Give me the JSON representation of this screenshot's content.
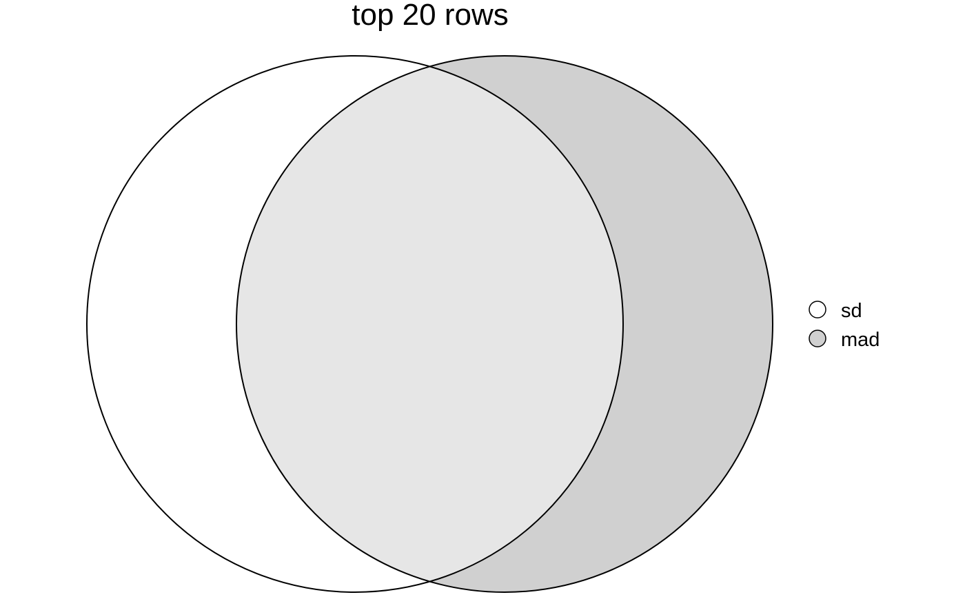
{
  "title": "top 20 rows",
  "sets": [
    {
      "name": "sd",
      "fill": "#ffffff"
    },
    {
      "name": "mad",
      "fill": "#d0d0d0"
    }
  ],
  "overlap_fill": "#e6e6e6",
  "stroke": "#000000"
}
